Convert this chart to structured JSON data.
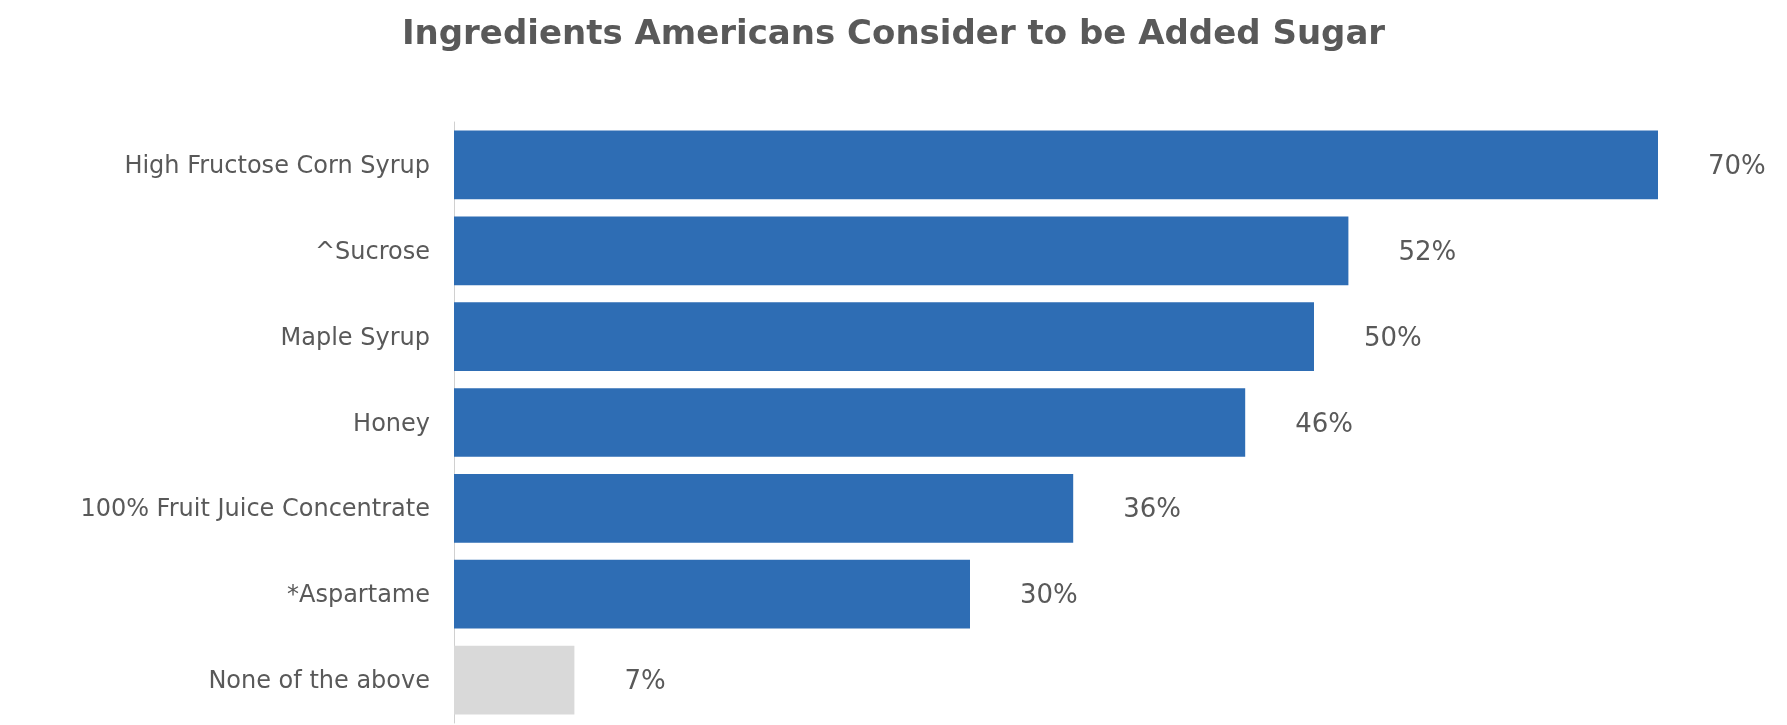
{
  "chart_data": {
    "type": "bar",
    "orientation": "horizontal",
    "title": "Ingredients Americans Consider to be Added Sugar",
    "categories": [
      "High Fructose Corn Syrup",
      "^Sucrose",
      "Maple Syrup",
      "Honey",
      "100% Fruit Juice Concentrate",
      "*Aspartame",
      "None of the above"
    ],
    "values": [
      70,
      52,
      50,
      46,
      36,
      30,
      7
    ],
    "value_labels": [
      "70%",
      "52%",
      "50%",
      "46%",
      "36%",
      "30%",
      "7%"
    ],
    "colors": [
      "#2e6db4",
      "#2e6db4",
      "#2e6db4",
      "#2e6db4",
      "#2e6db4",
      "#2e6db4",
      "#d9d9d9"
    ]
  }
}
